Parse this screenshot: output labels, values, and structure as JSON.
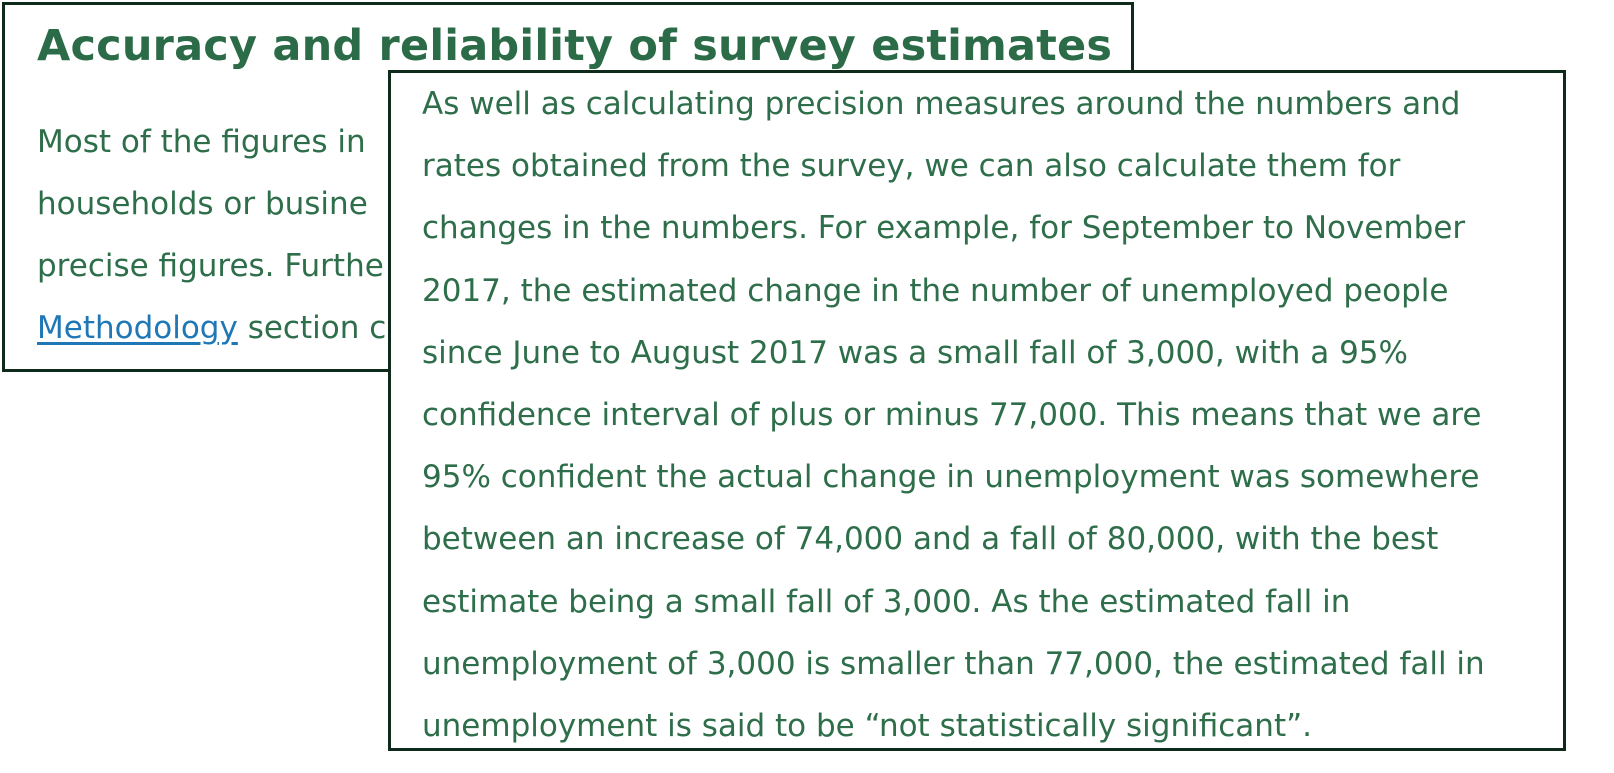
{
  "back_panel": {
    "title": "Accuracy and reliability of survey estimates",
    "lines": [
      "Most of the figures in",
      "households or busine",
      "precise figures. Furthe"
    ],
    "methodology_link": "Methodology",
    "last_line_tail": " section c"
  },
  "front_panel": {
    "lines": [
      "As well as calculating precision measures around the numbers and",
      "rates obtained from the survey, we can also calculate them for",
      "changes in the numbers. For example, for September to November",
      "2017, the estimated change in the number of unemployed people",
      "since June to August 2017 was a small fall of 3,000, with a 95%",
      "confidence interval of plus or minus 77,000. This means that we are",
      "95% confident the actual change in unemployment was somewhere",
      "between an increase of 74,000 and a fall of 80,000, with the best",
      "estimate being a small fall of 3,000. As the estimated fall in",
      "unemployment of 3,000 is smaller than 77,000, the estimated fall in",
      "unemployment is said to be “not statistically significant”."
    ]
  },
  "colors": {
    "text": "#2e6e4a",
    "title": "#2b6b48",
    "link": "#1f78b5",
    "border": "#0e2a1a"
  }
}
